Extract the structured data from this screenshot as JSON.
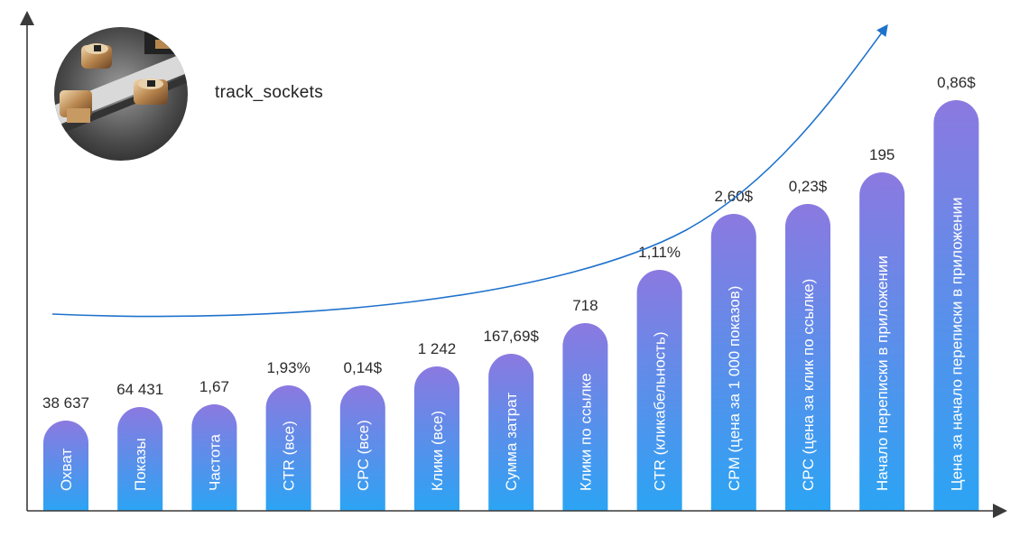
{
  "brand": {
    "name": "track_sockets",
    "avatar_icon": "track-sockets-photo"
  },
  "chart_data": {
    "type": "bar",
    "title": "",
    "xlabel": "",
    "ylabel": "",
    "categories": [
      "Охват",
      "Показы",
      "Частота",
      "CTR (все)",
      "CPC (все)",
      "Клики (все)",
      "Сумма затрат",
      "Клики по ссылке",
      "CTR (кликабельность)",
      "CPM (цена за 1 000 показов)",
      "CPC (цена за клик по ссылке)",
      "Начало переписки в приложении",
      "Цена за начало переписки в приложении"
    ],
    "value_labels": [
      "38 637",
      "64 431",
      "1,67",
      "1,93%",
      "0,14$",
      "1 242",
      "167,69$",
      "718",
      "1,11%",
      "2,60$",
      "0,23$",
      "195",
      "0,86$"
    ],
    "levels": [
      1,
      2,
      3,
      4,
      5,
      6,
      7,
      8,
      9,
      10,
      11,
      12,
      13
    ],
    "trend": "exponential",
    "colors": {
      "bar_top": "#8b79e0",
      "bar_bottom": "#2ba4f4",
      "trend": "#1f72cc",
      "axis": "#3a3a3a"
    }
  }
}
